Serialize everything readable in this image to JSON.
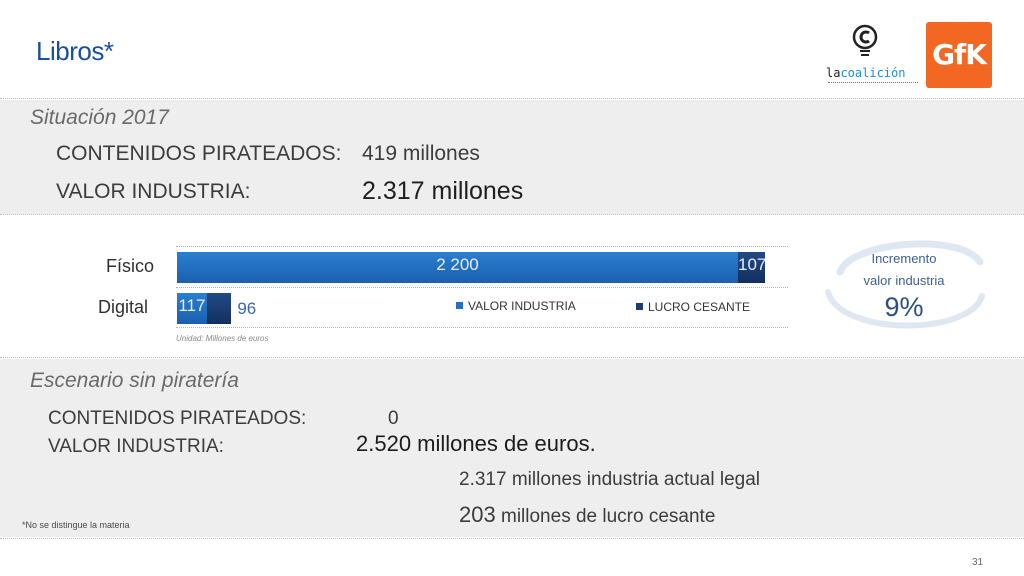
{
  "header": {
    "title": "Libros*"
  },
  "logos": {
    "coalicion_text_dark": "la",
    "coalicion_text_blue": "coalición",
    "gfk": "GfK"
  },
  "situacion": {
    "heading": "Situación 2017",
    "contenidos_label": "CONTENIDOS PIRATEADOS:",
    "contenidos_value": "419 millones",
    "valor_label": "VALOR INDUSTRIA:",
    "valor_value": "2.317 millones"
  },
  "chart_data": {
    "type": "bar",
    "orientation": "horizontal",
    "stacked": true,
    "categories": [
      "Físico",
      "Digital"
    ],
    "series": [
      {
        "name": "VALOR INDUSTRIA",
        "values": [
          2200,
          117
        ],
        "color": "#2470c4"
      },
      {
        "name": "LUCRO CESANTE",
        "values": [
          107,
          96
        ],
        "color": "#1b3d73"
      }
    ],
    "value_labels": [
      [
        "2 200",
        "107"
      ],
      [
        "117",
        "96"
      ]
    ],
    "unit_note": "Unidad: Millones de euros",
    "legend_placement": "bottom-right",
    "xlim": [
      0,
      2400
    ]
  },
  "badge": {
    "line1": "Incremento",
    "line2": "valor industria",
    "value": "9%"
  },
  "escenario": {
    "heading": "Escenario sin piratería",
    "contenidos_label": "CONTENIDOS PIRATEADOS:",
    "contenidos_value": "0",
    "valor_label": "VALOR INDUSTRIA:",
    "valor_value": "2.520 millones de euros.",
    "detail1": "2.317  millones industria actual legal",
    "detail2_num": "203",
    "detail2_text": " millones de lucro cesante"
  },
  "footer": {
    "footnote": "*No se distingue la materia",
    "page": "31"
  }
}
